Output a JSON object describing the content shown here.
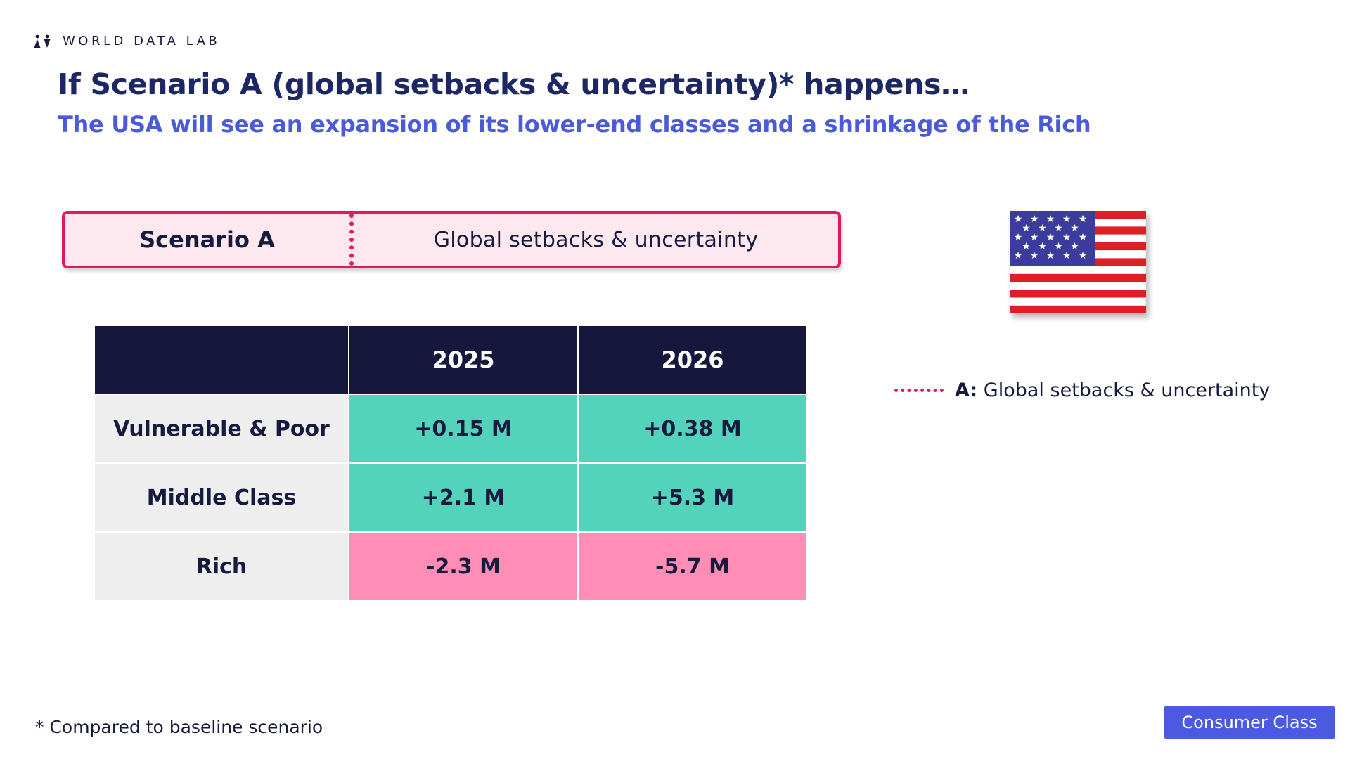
{
  "brand": {
    "name": "WORLD DATA LAB",
    "logo_icon": "people-logo-icon"
  },
  "header": {
    "title": "If Scenario A (global setbacks & uncertainty)* happens…",
    "subtitle": "The USA will see an expansion of its lower-end classes and a shrinkage of the Rich"
  },
  "scenario": {
    "name": "Scenario A",
    "description": "Global setbacks & uncertainty"
  },
  "flag": {
    "icon": "us-flag-icon"
  },
  "legend": {
    "key": "A:",
    "label": "Global setbacks & uncertainty"
  },
  "table": {
    "columns": [
      "",
      "2025",
      "2026"
    ],
    "rows": [
      {
        "label": "Vulnerable & Poor",
        "values": [
          "+0.15 M",
          "+0.38 M"
        ]
      },
      {
        "label": "Middle Class",
        "values": [
          "+2.1 M",
          "+5.3 M"
        ]
      },
      {
        "label": "Rich",
        "values": [
          "-2.3 M",
          "-5.7 M"
        ]
      }
    ]
  },
  "footnote": "* Compared to baseline scenario",
  "tag": {
    "label": "Consumer Class"
  },
  "colors": {
    "navy": "#15173d",
    "title": "#1c2763",
    "accent_blue": "#4b5ad9",
    "accent_pink": "#e4195d",
    "positive": "#54d3bc",
    "negative": "#ff8db5",
    "label_bg": "#eeeeee"
  }
}
